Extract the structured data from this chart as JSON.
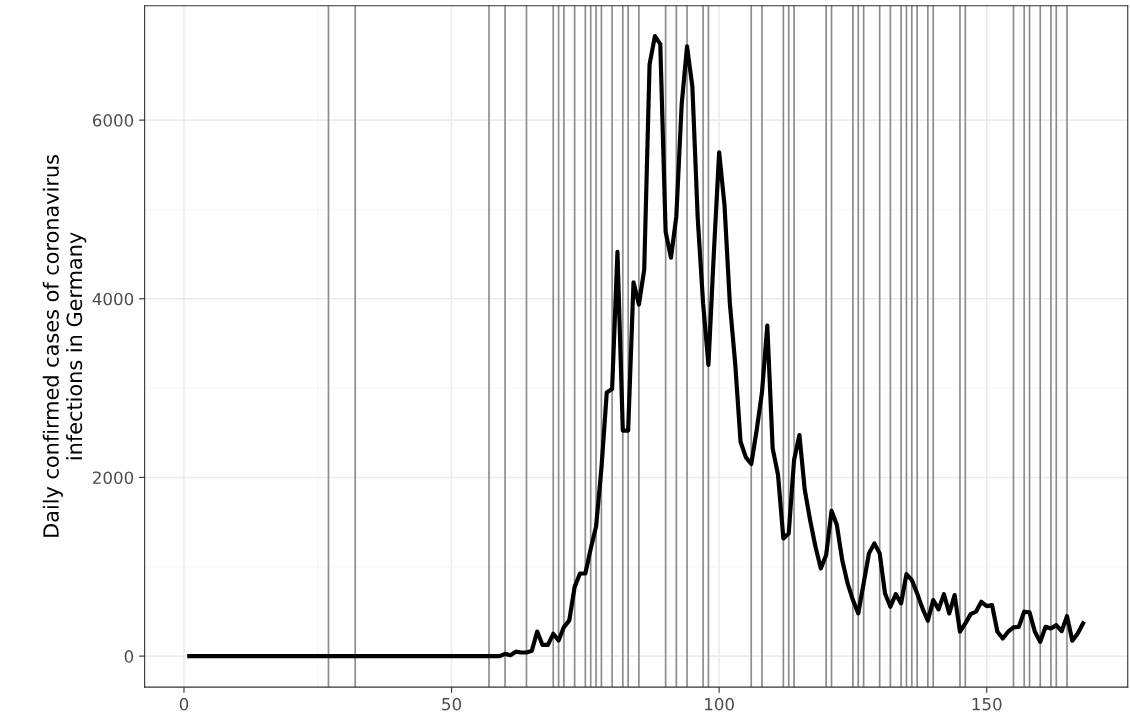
{
  "chart_data": {
    "type": "line",
    "ylabel": "Daily confirmed cases of coronavirus\ninfections in Germany",
    "xlim": [
      -7.35,
      176.35
    ],
    "ylim": [
      -347,
      7280
    ],
    "xticks": [
      0,
      50,
      100,
      150
    ],
    "yticks": [
      0,
      2000,
      4000,
      6000
    ],
    "grid": true,
    "marker": "none",
    "line_style": "solid",
    "series": [
      {
        "color": "#000000",
        "x": [
          1,
          27,
          32,
          45,
          56,
          58,
          59,
          60,
          61,
          62,
          63,
          64,
          65,
          66,
          67,
          68,
          69,
          70,
          71,
          72,
          73,
          74,
          75,
          76,
          77,
          78,
          79,
          80,
          81,
          82,
          83,
          84,
          85,
          86,
          87,
          88,
          89,
          90,
          91,
          92,
          93,
          94,
          95,
          96,
          97,
          98,
          99,
          100,
          101,
          102,
          103,
          104,
          105,
          106,
          107,
          108,
          109,
          110,
          111,
          112,
          113,
          114,
          115,
          116,
          117,
          118,
          119,
          120,
          121,
          122,
          123,
          124,
          125,
          126,
          127,
          128,
          129,
          130,
          131,
          132,
          133,
          134,
          135,
          136,
          137,
          138,
          139,
          140,
          141,
          142,
          143,
          144,
          145,
          146,
          147,
          148,
          149,
          150,
          151,
          152,
          153,
          154,
          155,
          156,
          157,
          158,
          159,
          160,
          161,
          162,
          163,
          164,
          165,
          166,
          167,
          168
        ],
        "values": [
          0,
          0,
          0,
          0,
          0,
          0,
          0,
          25,
          10,
          50,
          40,
          40,
          60,
          275,
          125,
          125,
          250,
          175,
          325,
          400,
          775,
          925,
          925,
          1200,
          1450,
          2100,
          2950,
          2990,
          4525,
          2525,
          2525,
          4185,
          3935,
          4325,
          6625,
          6940,
          6850,
          4750,
          4460,
          4925,
          6175,
          6825,
          6375,
          4900,
          3950,
          3260,
          4500,
          5640,
          5050,
          3950,
          3275,
          2400,
          2225,
          2150,
          2525,
          2950,
          3700,
          2325,
          2030,
          1318,
          1374,
          2195,
          2475,
          1860,
          1523,
          1224,
          982,
          1131,
          1627,
          1467,
          1075,
          814,
          627,
          478,
          814,
          1150,
          1262,
          1150,
          702,
          552,
          694,
          590,
          918,
          851,
          702,
          534,
          396,
          627,
          523,
          694,
          478,
          683,
          273,
          366,
          470,
          497,
          608,
          560,
          571,
          273,
          198,
          273,
          321,
          328,
          497,
          489,
          273,
          160,
          328,
          310,
          347,
          280,
          448,
          172,
          254,
          366
        ]
      }
    ],
    "ref_lines": [
      {
        "axis": "x",
        "value": 27,
        "color": "#8c8c8c"
      },
      {
        "axis": "x",
        "value": 32,
        "color": "#8c8c8c"
      },
      {
        "axis": "x",
        "value": 57,
        "color": "#8c8c8c"
      },
      {
        "axis": "x",
        "value": 60,
        "color": "#8c8c8c"
      },
      {
        "axis": "x",
        "value": 64,
        "color": "#8c8c8c"
      },
      {
        "axis": "x",
        "value": 69,
        "color": "#8c8c8c"
      },
      {
        "axis": "x",
        "value": 70,
        "color": "#8c8c8c"
      },
      {
        "axis": "x",
        "value": 71,
        "color": "#8c8c8c"
      },
      {
        "axis": "x",
        "value": 73,
        "color": "#8c8c8c"
      },
      {
        "axis": "x",
        "value": 75,
        "color": "#8c8c8c"
      },
      {
        "axis": "x",
        "value": 76,
        "color": "#8c8c8c"
      },
      {
        "axis": "x",
        "value": 77,
        "color": "#8c8c8c"
      },
      {
        "axis": "x",
        "value": 78,
        "color": "#8c8c8c"
      },
      {
        "axis": "x",
        "value": 80,
        "color": "#8c8c8c"
      },
      {
        "axis": "x",
        "value": 82,
        "color": "#8c8c8c"
      },
      {
        "axis": "x",
        "value": 83,
        "color": "#8c8c8c"
      },
      {
        "axis": "x",
        "value": 85,
        "color": "#8c8c8c"
      },
      {
        "axis": "x",
        "value": 90,
        "color": "#8c8c8c"
      },
      {
        "axis": "x",
        "value": 92,
        "color": "#8c8c8c"
      },
      {
        "axis": "x",
        "value": 94,
        "color": "#8c8c8c"
      },
      {
        "axis": "x",
        "value": 97,
        "color": "#8c8c8c"
      },
      {
        "axis": "x",
        "value": 98,
        "color": "#8c8c8c"
      },
      {
        "axis": "x",
        "value": 106,
        "color": "#8c8c8c"
      },
      {
        "axis": "x",
        "value": 108,
        "color": "#8c8c8c"
      },
      {
        "axis": "x",
        "value": 112,
        "color": "#8c8c8c"
      },
      {
        "axis": "x",
        "value": 113,
        "color": "#8c8c8c"
      },
      {
        "axis": "x",
        "value": 114,
        "color": "#8c8c8c"
      },
      {
        "axis": "x",
        "value": 120,
        "color": "#8c8c8c"
      },
      {
        "axis": "x",
        "value": 121,
        "color": "#8c8c8c"
      },
      {
        "axis": "x",
        "value": 125,
        "color": "#8c8c8c"
      },
      {
        "axis": "x",
        "value": 126,
        "color": "#8c8c8c"
      },
      {
        "axis": "x",
        "value": 127,
        "color": "#8c8c8c"
      },
      {
        "axis": "x",
        "value": 130,
        "color": "#8c8c8c"
      },
      {
        "axis": "x",
        "value": 132,
        "color": "#8c8c8c"
      },
      {
        "axis": "x",
        "value": 134,
        "color": "#8c8c8c"
      },
      {
        "axis": "x",
        "value": 135,
        "color": "#8c8c8c"
      },
      {
        "axis": "x",
        "value": 136,
        "color": "#8c8c8c"
      },
      {
        "axis": "x",
        "value": 137,
        "color": "#8c8c8c"
      },
      {
        "axis": "x",
        "value": 139,
        "color": "#8c8c8c"
      },
      {
        "axis": "x",
        "value": 140,
        "color": "#8c8c8c"
      },
      {
        "axis": "x",
        "value": 145,
        "color": "#8c8c8c"
      },
      {
        "axis": "x",
        "value": 146,
        "color": "#8c8c8c"
      },
      {
        "axis": "x",
        "value": 155,
        "color": "#8c8c8c"
      },
      {
        "axis": "x",
        "value": 157,
        "color": "#8c8c8c"
      },
      {
        "axis": "x",
        "value": 158,
        "color": "#8c8c8c"
      },
      {
        "axis": "x",
        "value": 160,
        "color": "#8c8c8c"
      },
      {
        "axis": "x",
        "value": 162,
        "color": "#8c8c8c"
      },
      {
        "axis": "x",
        "value": 163,
        "color": "#8c8c8c"
      },
      {
        "axis": "x",
        "value": 165,
        "color": "#8c8c8c"
      }
    ]
  }
}
